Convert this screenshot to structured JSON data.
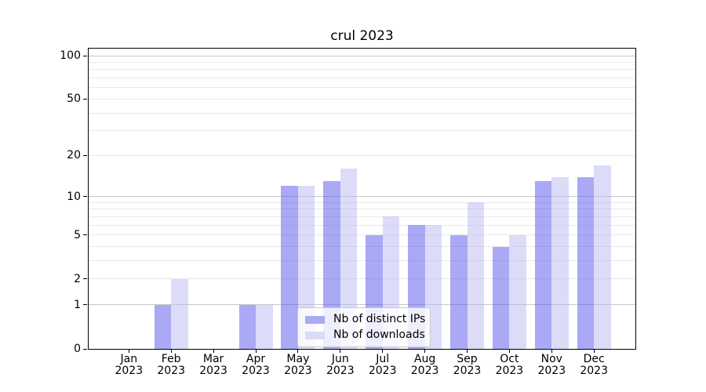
{
  "title": "crul 2023",
  "legend": {
    "items": [
      {
        "label": "Nb of distinct IPs",
        "swatch_color": "#a9a9f5",
        "fill_rgba": "rgba(83,83,235,0.5)"
      },
      {
        "label": "Nb of downloads",
        "swatch_color": "#dcdcf9",
        "fill_rgba": "rgba(185,185,243,0.5)"
      }
    ]
  },
  "y_axis": {
    "tick_values": [
      0,
      1,
      2,
      5,
      10,
      20,
      50,
      100
    ],
    "tick_labels": [
      "0",
      "1",
      "2",
      "5",
      "10",
      "20",
      "50",
      "100"
    ]
  },
  "x_axis": {
    "months": [
      "Jan",
      "Feb",
      "Mar",
      "Apr",
      "May",
      "Jun",
      "Jul",
      "Aug",
      "Sep",
      "Oct",
      "Nov",
      "Dec"
    ],
    "year": "2023"
  },
  "colors": {
    "grid_major": "#c6c6c6",
    "grid_minor": "#e9e9e9",
    "axis": "#000000",
    "background": "#ffffff"
  },
  "chart_data": {
    "type": "bar",
    "title": "crul 2023",
    "categories": [
      "Jan 2023",
      "Feb 2023",
      "Mar 2023",
      "Apr 2023",
      "May 2023",
      "Jun 2023",
      "Jul 2023",
      "Aug 2023",
      "Sep 2023",
      "Oct 2023",
      "Nov 2023",
      "Dec 2023"
    ],
    "series": [
      {
        "name": "Nb of distinct IPs",
        "color": "#a9a9f5",
        "values": [
          0,
          1,
          0,
          1,
          12,
          13,
          5,
          6,
          5,
          4,
          13,
          14
        ]
      },
      {
        "name": "Nb of downloads",
        "color": "#dcdcf9",
        "values": [
          0,
          2,
          0,
          1,
          12,
          16,
          7,
          6,
          9,
          5,
          14,
          17
        ]
      }
    ],
    "xlabel": "",
    "ylabel": "",
    "yscale": "log1p",
    "ylim": [
      0,
      113
    ],
    "yticks": [
      0,
      1,
      2,
      5,
      10,
      20,
      50,
      100
    ],
    "grid_major_at": [
      1,
      10,
      100
    ],
    "grid_minor_at": [
      2,
      3,
      4,
      5,
      6,
      7,
      8,
      9,
      20,
      30,
      40,
      50,
      60,
      70,
      80,
      90
    ],
    "grid": "on",
    "legend_position": "lower center"
  }
}
